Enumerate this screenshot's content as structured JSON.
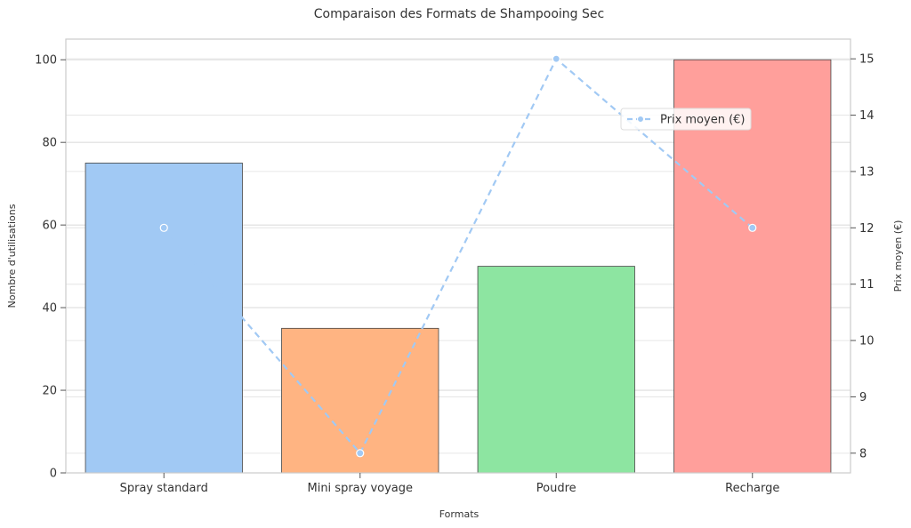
{
  "chart_data": {
    "type": "bar",
    "title": "Comparaison des Formats de Shampooing Sec",
    "xlabel": "Formats",
    "ylabel": "Nombre d'utilisations",
    "y2label": "Prix moyen (€)",
    "categories": [
      "Spray standard",
      "Mini spray voyage",
      "Poudre",
      "Recharge"
    ],
    "series": [
      {
        "name": "Nombre d'utilisations",
        "type": "bar",
        "axis": "left",
        "values": [
          75,
          35,
          50,
          100
        ],
        "colors": [
          "#a1c9f4",
          "#ffb482",
          "#8de5a1",
          "#ff9f9b"
        ]
      },
      {
        "name": "Prix moyen (€)",
        "type": "line",
        "axis": "right",
        "values": [
          12,
          8,
          15,
          12
        ],
        "color": "#a1c9f4",
        "style": "dashed"
      }
    ],
    "ylim": [
      0,
      105
    ],
    "yticks": [
      0,
      20,
      40,
      60,
      80,
      100
    ],
    "y2lim": [
      7.65,
      15.35
    ],
    "y2ticks": [
      8,
      9,
      10,
      11,
      12,
      13,
      14,
      15
    ],
    "legend": {
      "position": "upper-right",
      "label": "Prix moyen (€)"
    },
    "grid": true
  }
}
